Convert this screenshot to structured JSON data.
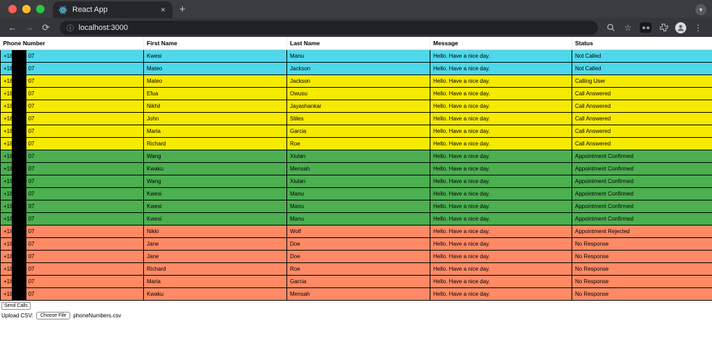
{
  "browser": {
    "tab_title": "React App",
    "close_tab_glyph": "×",
    "new_tab_glyph": "+",
    "tab_search_glyph": "▾",
    "nav": {
      "back": "←",
      "forward": "→",
      "reload": "⟳"
    },
    "omnibox": {
      "info_glyph": "ⓘ",
      "url": "localhost:3000"
    },
    "icons": {
      "bookmark_star": "☆",
      "menu_kebab": "⋮"
    },
    "traffic_colors": {
      "close": "#ff5f57",
      "minimize": "#febc2e",
      "zoom": "#28c840"
    }
  },
  "palette": {
    "cyan": "#4ED8EA",
    "yellow": "#F6EA00",
    "green": "#4CAF50",
    "orange": "#FF8A65"
  },
  "table": {
    "headers": [
      "Phone Number",
      "First Name",
      "Last Name",
      "Message",
      "Status"
    ],
    "phone_visible_prefix": "+18",
    "phone_visible_suffix": "07",
    "message": "Hello. Have a nice day.",
    "rows": [
      {
        "first": "Kwesi",
        "last": "Manu",
        "status": "Not Called",
        "color": "cyan"
      },
      {
        "first": "Mateo",
        "last": "Jackson",
        "status": "Not Called",
        "color": "cyan"
      },
      {
        "first": "Mateo",
        "last": "Jackson",
        "status": "Calling User",
        "color": "yellow"
      },
      {
        "first": "Efua",
        "last": "Owusu",
        "status": "Call Answered",
        "color": "yellow"
      },
      {
        "first": "Nikhil",
        "last": "Jayashankar",
        "status": "Call Answered",
        "color": "yellow"
      },
      {
        "first": "John",
        "last": "Stiles",
        "status": "Call Answered",
        "color": "yellow"
      },
      {
        "first": "Maria",
        "last": "Garcia",
        "status": "Call Answered",
        "color": "yellow"
      },
      {
        "first": "Richard",
        "last": "Roe",
        "status": "Call Answered",
        "color": "yellow"
      },
      {
        "first": "Wang",
        "last": "Xiulan",
        "status": "Appointment Confirmed",
        "color": "green"
      },
      {
        "first": "Kwaku",
        "last": "Mensah",
        "status": "Appointment Confirmed",
        "color": "green"
      },
      {
        "first": "Wang",
        "last": "Xiulan",
        "status": "Appointment Confirmed",
        "color": "green"
      },
      {
        "first": "Kwesi",
        "last": "Manu",
        "status": "Appointment Confirmed",
        "color": "green"
      },
      {
        "first": "Kwesi",
        "last": "Manu",
        "status": "Appointment Confirmed",
        "color": "green"
      },
      {
        "first": "Kwesi",
        "last": "Manu",
        "status": "Appointment Confirmed",
        "color": "green"
      },
      {
        "first": "Nikki",
        "last": "Wolf",
        "status": "Appointment Rejected",
        "color": "orange"
      },
      {
        "first": "Jane",
        "last": "Doe",
        "status": "No Response",
        "color": "orange"
      },
      {
        "first": "Jane",
        "last": "Doe",
        "status": "No Response",
        "color": "orange"
      },
      {
        "first": "Richard",
        "last": "Roe",
        "status": "No Response",
        "color": "orange"
      },
      {
        "first": "Maria",
        "last": "Garcia",
        "status": "No Response",
        "color": "orange"
      },
      {
        "first": "Kwaku",
        "last": "Mensah",
        "status": "No Response",
        "color": "orange"
      }
    ]
  },
  "footer": {
    "send_calls": "Send Calls",
    "upload_label": "Upload CSV:",
    "choose_file": "Choose File",
    "file_name": "phoneNumbers.csv"
  }
}
